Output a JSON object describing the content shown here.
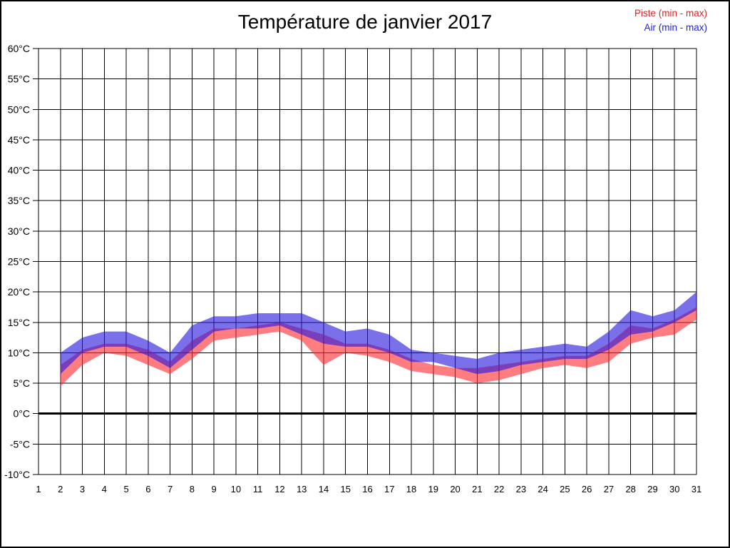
{
  "chart_data": {
    "type": "area",
    "subtype": "min-max range bands",
    "title": "Température de janvier 2017",
    "xlabel": "",
    "ylabel": "",
    "y_unit": "°C",
    "xlim": [
      1,
      31
    ],
    "ylim": [
      -10,
      60
    ],
    "y_tick_step": 5,
    "grid": true,
    "zero_line": true,
    "legend_position": "top-right",
    "x_tick_labels": [
      "1",
      "2",
      "3",
      "4",
      "5",
      "6",
      "7",
      "8",
      "9",
      "10",
      "11",
      "12",
      "13",
      "14",
      "15",
      "16",
      "17",
      "18",
      "19",
      "20",
      "21",
      "22",
      "23",
      "24",
      "25",
      "26",
      "27",
      "28",
      "29",
      "30",
      "31"
    ],
    "y_tick_labels": [
      "60°C",
      "55°C",
      "50°C",
      "45°C",
      "40°C",
      "35°C",
      "30°C",
      "25°C",
      "20°C",
      "15°C",
      "10°C",
      "5°C",
      "0°C",
      "-5°C",
      "-10°C"
    ],
    "x": [
      2,
      3,
      4,
      5,
      6,
      7,
      8,
      9,
      10,
      11,
      12,
      13,
      14,
      15,
      16,
      17,
      18,
      19,
      20,
      21,
      22,
      23,
      24,
      25,
      26,
      27,
      28,
      29,
      30,
      31
    ],
    "series": [
      {
        "name": "Piste (min - max)",
        "legend_color": "#e02222",
        "fill_base": "#ff2d32",
        "fill_opacity": 0.62,
        "min": [
          4.5,
          8,
          10,
          9.5,
          8,
          6.5,
          9,
          12,
          12.5,
          13,
          13.5,
          12,
          8,
          10,
          9.5,
          8.5,
          7,
          6.5,
          6,
          5,
          5.5,
          6.5,
          7.5,
          8,
          7.5,
          8.5,
          11.5,
          12.5,
          13,
          15.5
        ],
        "max": [
          8,
          10.5,
          11.5,
          11.5,
          10.5,
          8.5,
          12,
          14,
          14,
          14.5,
          15,
          14,
          13,
          11.5,
          11.5,
          10.5,
          9,
          8,
          7.5,
          7.5,
          8,
          8.5,
          9,
          9.5,
          9.5,
          11.5,
          14.5,
          14,
          15.5,
          17.5
        ]
      },
      {
        "name": "Air (min - max)",
        "legend_color": "#2222e0",
        "fill_base": "#2818dd",
        "fill_opacity": 0.62,
        "min": [
          6.5,
          10,
          11,
          11,
          9.5,
          7.5,
          10.5,
          13.5,
          14,
          14,
          14.5,
          13,
          11.5,
          11,
          11,
          10,
          8.5,
          8.5,
          7.5,
          6.5,
          7,
          8,
          8.5,
          9,
          9,
          10.5,
          13,
          13.5,
          15,
          17
        ],
        "max": [
          10,
          12.5,
          13.5,
          13.5,
          12,
          10,
          14.5,
          16,
          16,
          16.5,
          16.5,
          16.5,
          15,
          13.5,
          14,
          13,
          10.5,
          10,
          9.5,
          9,
          10,
          10.5,
          11,
          11.5,
          11,
          13.5,
          17,
          16,
          17,
          20
        ]
      }
    ]
  }
}
